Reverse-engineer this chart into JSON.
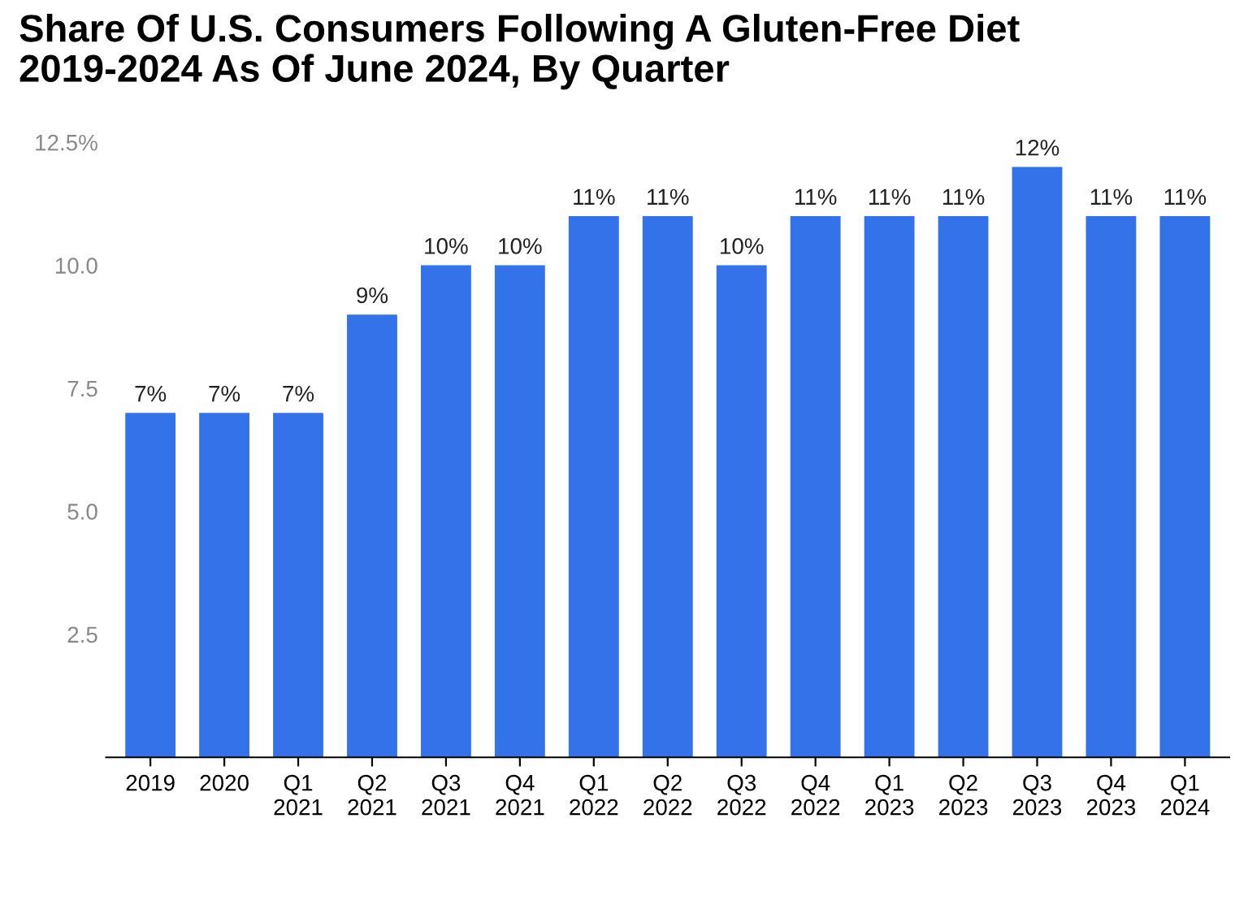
{
  "chart_data": {
    "type": "bar",
    "title": "Share Of U.S. Consumers Following A Gluten-Free Diet\n2019-2024 As Of June 2024, By Quarter",
    "categories": [
      "2019",
      "2020",
      "Q1\n2021",
      "Q2\n2021",
      "Q3\n2021",
      "Q4\n2021",
      "Q1\n2022",
      "Q2\n2022",
      "Q3\n2022",
      "Q4\n2022",
      "Q1\n2023",
      "Q2\n2023",
      "Q3\n2023",
      "Q4\n2023",
      "Q1\n2024"
    ],
    "values": [
      7,
      7,
      7,
      9,
      10,
      10,
      11,
      11,
      10,
      11,
      11,
      11,
      12,
      11,
      11
    ],
    "value_labels": [
      "7%",
      "7%",
      "7%",
      "9%",
      "10%",
      "10%",
      "11%",
      "11%",
      "10%",
      "11%",
      "11%",
      "11%",
      "12%",
      "11%",
      "11%"
    ],
    "color": "#3372e8",
    "ylim": [
      0,
      12.5
    ],
    "yticks": [
      {
        "value": 2.5,
        "label": "2.5"
      },
      {
        "value": 5,
        "label": "5.0"
      },
      {
        "value": 7.5,
        "label": "7.5"
      },
      {
        "value": 10,
        "label": "10.0"
      },
      {
        "value": 12.5,
        "label": "12.5%"
      }
    ],
    "grid": false
  }
}
